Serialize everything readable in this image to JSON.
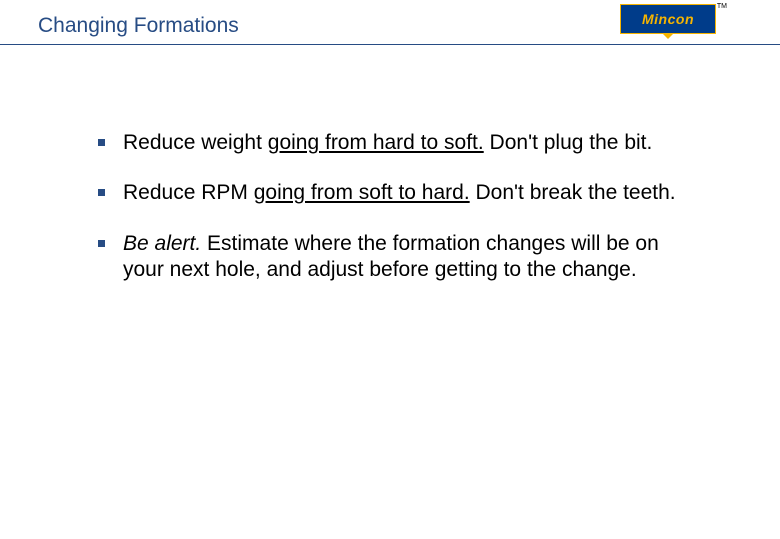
{
  "slide": {
    "title": "Changing Formations",
    "title_color": "#274c84",
    "underline_color": "#274c84",
    "background": "#ffffff"
  },
  "logo": {
    "text": "Mincon",
    "bg_color": "#003c8a",
    "fg_color": "#f6b400",
    "tm": "TM"
  },
  "bullets": [
    {
      "pre": "Reduce weight ",
      "underlined": "going from hard to soft.",
      "post": " Don't plug the bit."
    },
    {
      "pre": "Reduce RPM ",
      "underlined": "going from soft to hard.",
      "post": " Don't break the teeth."
    },
    {
      "italic": "Be alert.",
      "post": " Estimate where the formation changes will be on your next hole, and adjust before getting to the change."
    }
  ],
  "style": {
    "bullet_color": "#274c84",
    "body_fontsize": 21,
    "title_fontsize": 21
  }
}
